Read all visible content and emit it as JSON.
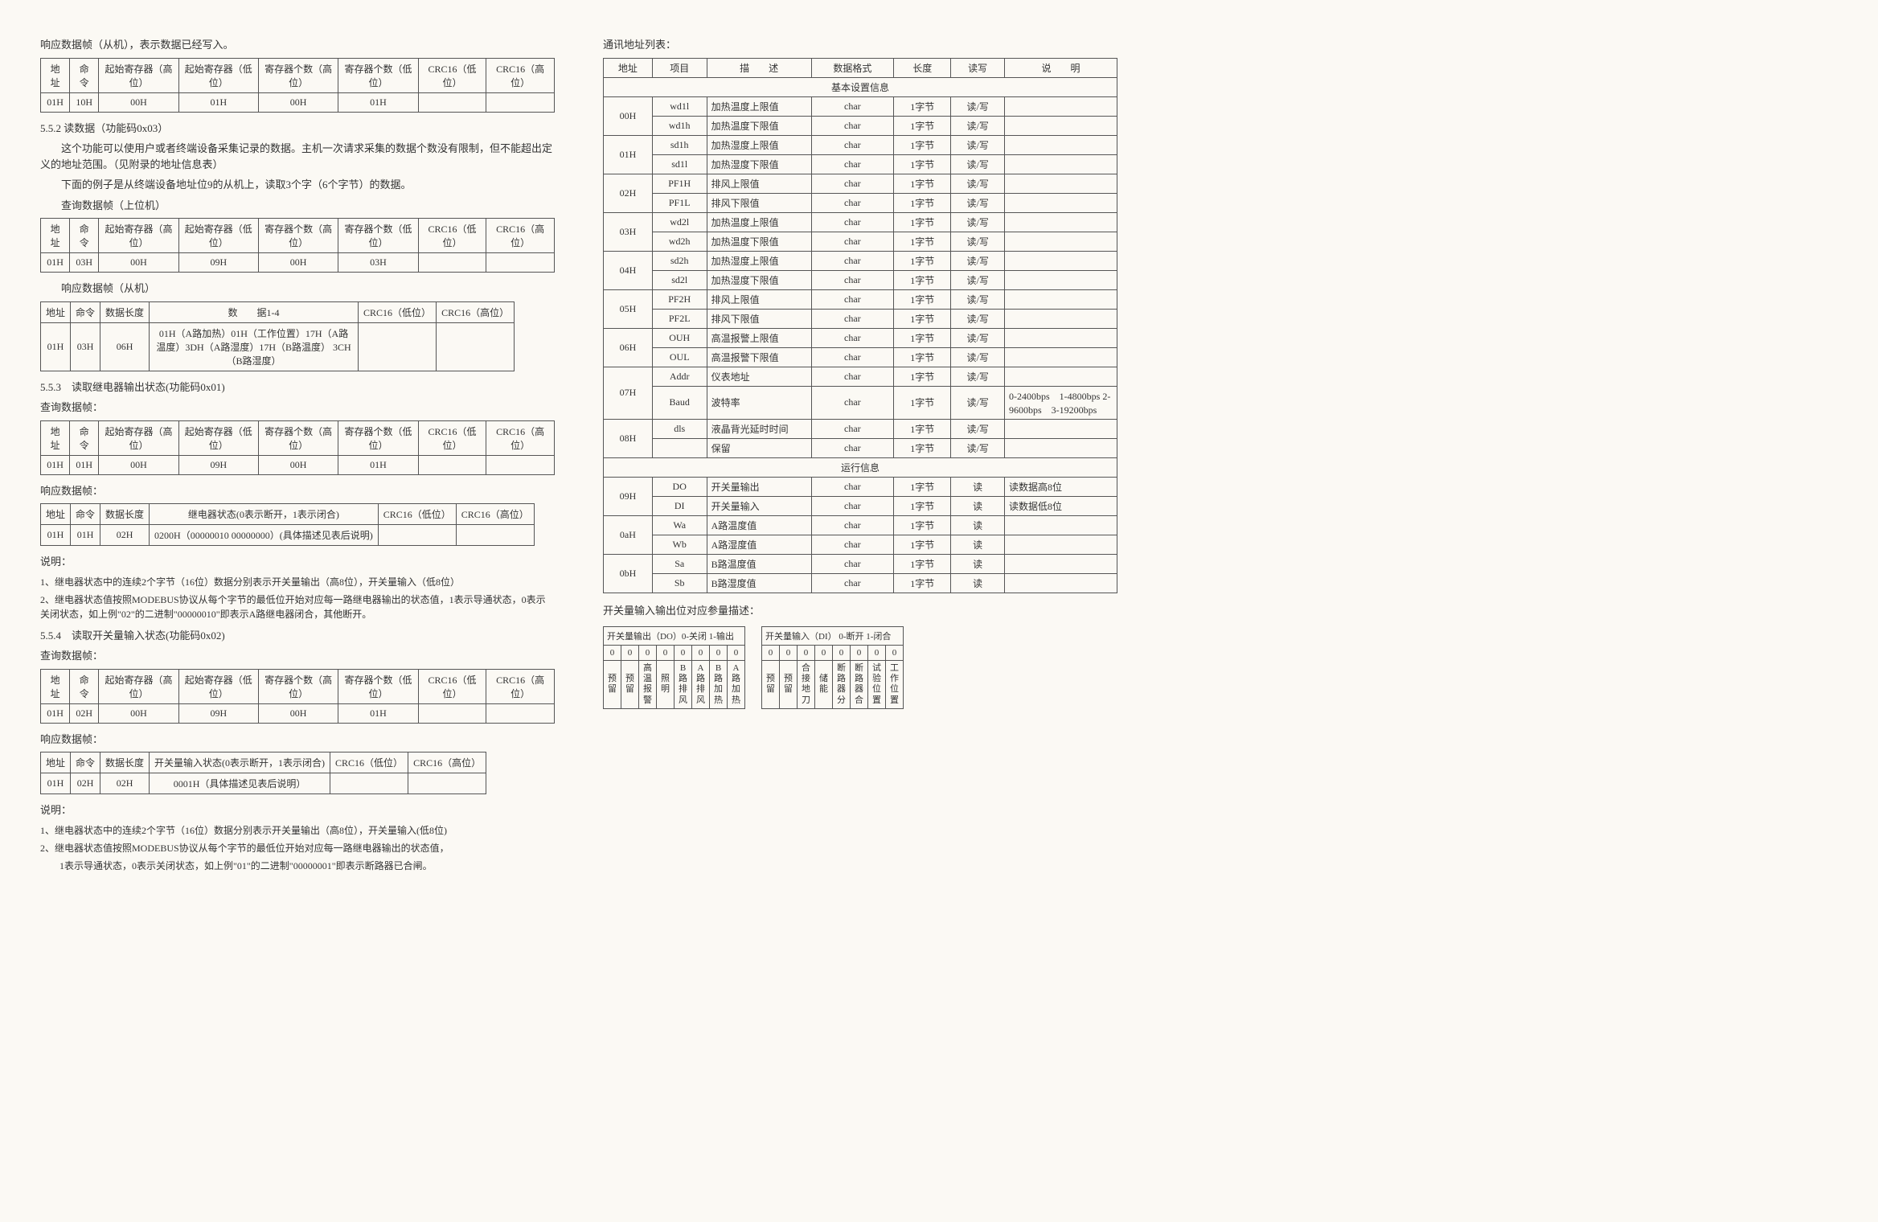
{
  "left": {
    "intro1": "响应数据帧（从机），表示数据已经写入。",
    "headers": {
      "addr": "地址",
      "cmd": "命令",
      "reg_hi": "起始寄存器（高位）",
      "reg_lo": "起始寄存器（低位）",
      "cnt_hi": "寄存器个数（高位）",
      "cnt_lo": "寄存器个数（低位）",
      "crc_lo": "CRC16（低位）",
      "crc_hi": "CRC16（高位）",
      "datalen": "数据长度",
      "data14": "数　　据1-4",
      "relay_state": "继电器状态(0表示断开，1表示闭合)",
      "switch_state": "开关量输入状态(0表示断开，1表示闭合)"
    },
    "t1": {
      "r": [
        "01H",
        "10H",
        "00H",
        "01H",
        "00H",
        "01H",
        "",
        ""
      ]
    },
    "sec552_title": "5.5.2 读数据（功能码0x03）",
    "sec552_p1": "这个功能可以使用户或者终端设备采集记录的数据。主机一次请求采集的数据个数没有限制，但不能超出定义的地址范围。（见附录的地址信息表）",
    "sec552_p2": "下面的例子是从终端设备地址位9的从机上，读取3个字（6个字节）的数据。",
    "sec552_p3": "查询数据帧（上位机）",
    "t2": {
      "r": [
        "01H",
        "03H",
        "00H",
        "09H",
        "00H",
        "03H",
        "",
        ""
      ]
    },
    "sec552_p4": "响应数据帧（从机）",
    "t3": {
      "r": [
        "01H",
        "03H",
        "06H"
      ],
      "data": "01H（A路加热）01H（工作位置）17H（A路温度）3DH（A路湿度）17H（B路温度） 3CH（B路湿度）"
    },
    "sec553_title": "5.5.3　读取继电器输出状态(功能码0x01)",
    "query_label": "查询数据帧：",
    "t4": {
      "r": [
        "01H",
        "01H",
        "00H",
        "09H",
        "00H",
        "01H",
        "",
        ""
      ]
    },
    "resp_label": "响应数据帧：",
    "t5": {
      "r": [
        "01H",
        "01H",
        "02H"
      ],
      "data": "0200H（00000010 00000000）(具体描述见表后说明)"
    },
    "note_label": "说明：",
    "note553_1": "1、继电器状态中的连续2个字节（16位）数据分别表示开关量输出（高8位），开关量输入（低8位）",
    "note553_2": "2、继电器状态值按照MODEBUS协议从每个字节的最低位开始对应每一路继电器输出的状态值，1表示导通状态，0表示关闭状态，如上例\"02\"的二进制\"00000010\"即表示A路继电器闭合，其他断开。",
    "sec554_title": "5.5.4　读取开关量输入状态(功能码0x02)",
    "t6": {
      "r": [
        "01H",
        "02H",
        "00H",
        "09H",
        "00H",
        "01H",
        "",
        ""
      ]
    },
    "t7": {
      "r": [
        "01H",
        "02H",
        "02H"
      ],
      "data": "0001H（具体描述见表后说明）"
    },
    "note554_1": "1、继电器状态中的连续2个字节（16位）数据分别表示开关量输出（高8位），开关量输入(低8位)",
    "note554_2": "2、继电器状态值按照MODEBUS协议从每个字节的最低位开始对应每一路继电器输出的状态值，",
    "note554_3": "1表示导通状态，0表示关闭状态，如上例\"01\"的二进制\"00000001\"即表示断路器已合闸。"
  },
  "right": {
    "title": "通讯地址列表：",
    "headers": {
      "addr": "地址",
      "item": "项目",
      "desc": "描　　述",
      "fmt": "数据格式",
      "len": "长度",
      "rw": "读写",
      "note": "说　　明"
    },
    "section1": "基本设置信息",
    "section2": "运行信息",
    "rows_basic": [
      {
        "addr": "00H",
        "item": "wd1l",
        "desc": "加热温度上限值",
        "fmt": "char",
        "len": "1字节",
        "rw": "读/写",
        "note": ""
      },
      {
        "addr": "",
        "item": "wd1h",
        "desc": "加热温度下限值",
        "fmt": "char",
        "len": "1字节",
        "rw": "读/写",
        "note": ""
      },
      {
        "addr": "01H",
        "item": "sd1h",
        "desc": "加热湿度上限值",
        "fmt": "char",
        "len": "1字节",
        "rw": "读/写",
        "note": ""
      },
      {
        "addr": "",
        "item": "sd1l",
        "desc": "加热湿度下限值",
        "fmt": "char",
        "len": "1字节",
        "rw": "读/写",
        "note": ""
      },
      {
        "addr": "02H",
        "item": "PF1H",
        "desc": "排风上限值",
        "fmt": "char",
        "len": "1字节",
        "rw": "读/写",
        "note": ""
      },
      {
        "addr": "",
        "item": "PF1L",
        "desc": "排风下限值",
        "fmt": "char",
        "len": "1字节",
        "rw": "读/写",
        "note": ""
      },
      {
        "addr": "03H",
        "item": "wd2l",
        "desc": "加热温度上限值",
        "fmt": "char",
        "len": "1字节",
        "rw": "读/写",
        "note": ""
      },
      {
        "addr": "",
        "item": "wd2h",
        "desc": "加热温度下限值",
        "fmt": "char",
        "len": "1字节",
        "rw": "读/写",
        "note": ""
      },
      {
        "addr": "04H",
        "item": "sd2h",
        "desc": "加热湿度上限值",
        "fmt": "char",
        "len": "1字节",
        "rw": "读/写",
        "note": ""
      },
      {
        "addr": "",
        "item": "sd2l",
        "desc": "加热湿度下限值",
        "fmt": "char",
        "len": "1字节",
        "rw": "读/写",
        "note": ""
      },
      {
        "addr": "05H",
        "item": "PF2H",
        "desc": "排风上限值",
        "fmt": "char",
        "len": "1字节",
        "rw": "读/写",
        "note": ""
      },
      {
        "addr": "",
        "item": "PF2L",
        "desc": "排风下限值",
        "fmt": "char",
        "len": "1字节",
        "rw": "读/写",
        "note": ""
      },
      {
        "addr": "06H",
        "item": "OUH",
        "desc": "高温报警上限值",
        "fmt": "char",
        "len": "1字节",
        "rw": "读/写",
        "note": ""
      },
      {
        "addr": "",
        "item": "OUL",
        "desc": "高温报警下限值",
        "fmt": "char",
        "len": "1字节",
        "rw": "读/写",
        "note": ""
      },
      {
        "addr": "07H",
        "item": "Addr",
        "desc": "仪表地址",
        "fmt": "char",
        "len": "1字节",
        "rw": "读/写",
        "note": ""
      },
      {
        "addr": "",
        "item": "Baud",
        "desc": "波特率",
        "fmt": "char",
        "len": "1字节",
        "rw": "读/写",
        "note": "0-2400bps　1-4800bps 2-9600bps　3-19200bps"
      },
      {
        "addr": "08H",
        "item": "dls",
        "desc": "液晶背光延时时间",
        "fmt": "char",
        "len": "1字节",
        "rw": "读/写",
        "note": ""
      },
      {
        "addr": "",
        "item": "",
        "desc": "保留",
        "fmt": "char",
        "len": "1字节",
        "rw": "读/写",
        "note": ""
      }
    ],
    "rows_run": [
      {
        "addr": "09H",
        "item": "DO",
        "desc": "开关量输出",
        "fmt": "char",
        "len": "1字节",
        "rw": "读",
        "note": "读数据高8位"
      },
      {
        "addr": "",
        "item": "DI",
        "desc": "开关量输入",
        "fmt": "char",
        "len": "1字节",
        "rw": "读",
        "note": "读数据低8位"
      },
      {
        "addr": "0aH",
        "item": "Wa",
        "desc": "A路温度值",
        "fmt": "char",
        "len": "1字节",
        "rw": "读",
        "note": ""
      },
      {
        "addr": "",
        "item": "Wb",
        "desc": "A路湿度值",
        "fmt": "char",
        "len": "1字节",
        "rw": "读",
        "note": ""
      },
      {
        "addr": "0bH",
        "item": "Sa",
        "desc": "B路温度值",
        "fmt": "char",
        "len": "1字节",
        "rw": "读",
        "note": ""
      },
      {
        "addr": "",
        "item": "Sb",
        "desc": "B路湿度值",
        "fmt": "char",
        "len": "1字节",
        "rw": "读",
        "note": ""
      }
    ],
    "bit_title": "开关量输入输出位对应参量描述：",
    "do_header": "开关量输出（DO）0-关闭 1-输出",
    "di_header": "开关量输入（DI） 0-断开 1-闭合",
    "zeros": [
      "0",
      "0",
      "0",
      "0",
      "0",
      "0",
      "0",
      "0"
    ],
    "do_labels": [
      "预留",
      "预留",
      "高温报警",
      "照明",
      "B路排风",
      "A路排风",
      "B路加热",
      "A路加热"
    ],
    "di_labels": [
      "预留",
      "预留",
      "合接地刀",
      "储能",
      "断路器分",
      "断路器合",
      "试验位置",
      "工作位置"
    ]
  }
}
